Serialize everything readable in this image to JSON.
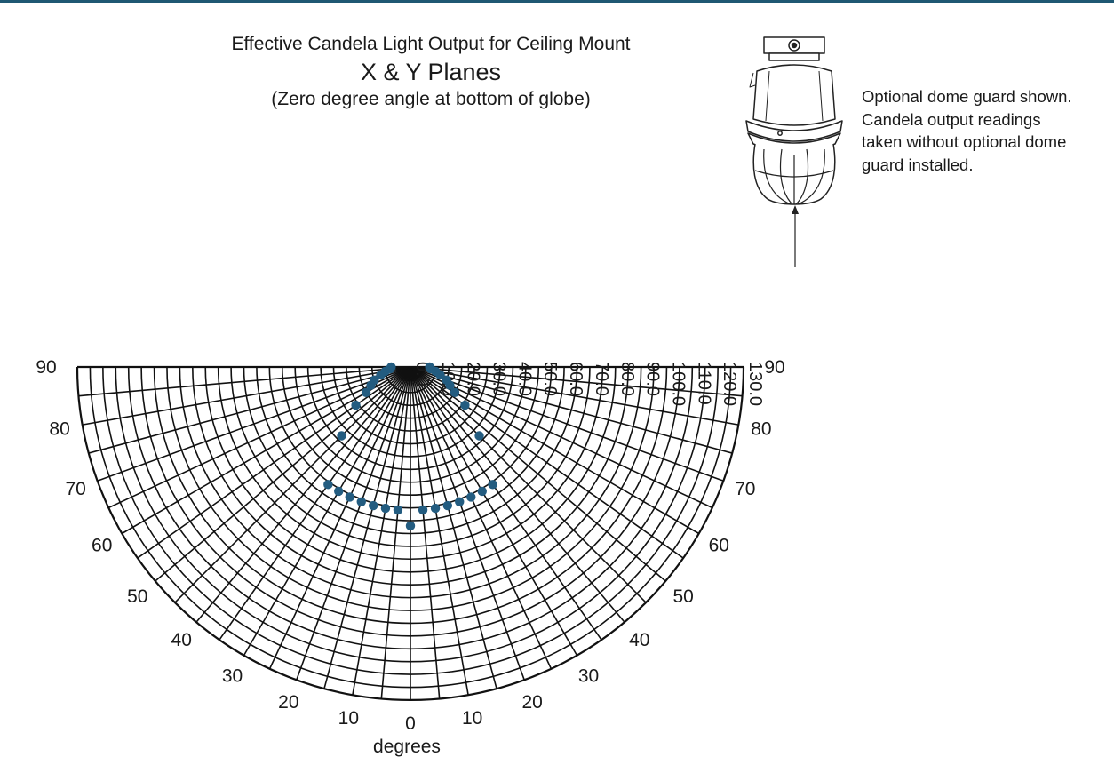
{
  "header": {
    "line1": "Effective Candela Light Output for Ceiling Mount",
    "line2": "X & Y Planes",
    "line3": "(Zero degree angle at bottom of globe)"
  },
  "note": {
    "lines": [
      "Optional dome guard shown.",
      "Candela output readings",
      "taken without optional dome",
      "guard installed."
    ]
  },
  "colors": {
    "accent_rule": "#1f5873",
    "data_points": "#235c80",
    "grid": "#111111"
  },
  "illustration": {
    "icon": "ceiling-mount-light-fixture-with-dome-guard"
  },
  "chart_data": {
    "type": "polar",
    "half": "lower semicircle",
    "xlabel": "degrees",
    "angle_ticks": [
      "0",
      "10",
      "20",
      "30",
      "40",
      "50",
      "60",
      "70",
      "80",
      "90"
    ],
    "radial_ticks": [
      "0.0",
      "10.0",
      "20.0",
      "30.0",
      "40.0",
      "50.0",
      "60.0",
      "70.0",
      "80.0",
      "90.0",
      "100.0",
      "110.0",
      "120.0",
      "130.0"
    ],
    "radial_range": [
      0,
      130
    ],
    "grid": true,
    "series": [
      {
        "values": [
          {
            "angle": 0,
            "candela": 62
          },
          {
            "angle": -5,
            "candela": 56
          },
          {
            "angle": 5,
            "candela": 56
          },
          {
            "angle": -10,
            "candela": 56
          },
          {
            "angle": 10,
            "candela": 56
          },
          {
            "angle": -15,
            "candela": 56
          },
          {
            "angle": 15,
            "candela": 56
          },
          {
            "angle": -20,
            "candela": 56
          },
          {
            "angle": 20,
            "candela": 56
          },
          {
            "angle": -25,
            "candela": 56
          },
          {
            "angle": 25,
            "candela": 56
          },
          {
            "angle": -30,
            "candela": 56
          },
          {
            "angle": 30,
            "candela": 56
          },
          {
            "angle": -35,
            "candela": 56
          },
          {
            "angle": 35,
            "candela": 56
          },
          {
            "angle": -45,
            "candela": 38
          },
          {
            "angle": 45,
            "candela": 38
          },
          {
            "angle": -55,
            "candela": 26
          },
          {
            "angle": 55,
            "candela": 26
          },
          {
            "angle": -60,
            "candela": 20
          },
          {
            "angle": 60,
            "candela": 20
          },
          {
            "angle": -65,
            "candela": 17
          },
          {
            "angle": 65,
            "candela": 17
          },
          {
            "angle": -70,
            "candela": 15
          },
          {
            "angle": 70,
            "candela": 15
          },
          {
            "angle": -75,
            "candela": 12
          },
          {
            "angle": 75,
            "candela": 12
          },
          {
            "angle": -80,
            "candela": 10
          },
          {
            "angle": 80,
            "candela": 10
          },
          {
            "angle": -85,
            "candela": 8
          },
          {
            "angle": 85,
            "candela": 8
          },
          {
            "angle": -90,
            "candela": 7.5
          },
          {
            "angle": 90,
            "candela": 7.5
          }
        ]
      }
    ]
  }
}
